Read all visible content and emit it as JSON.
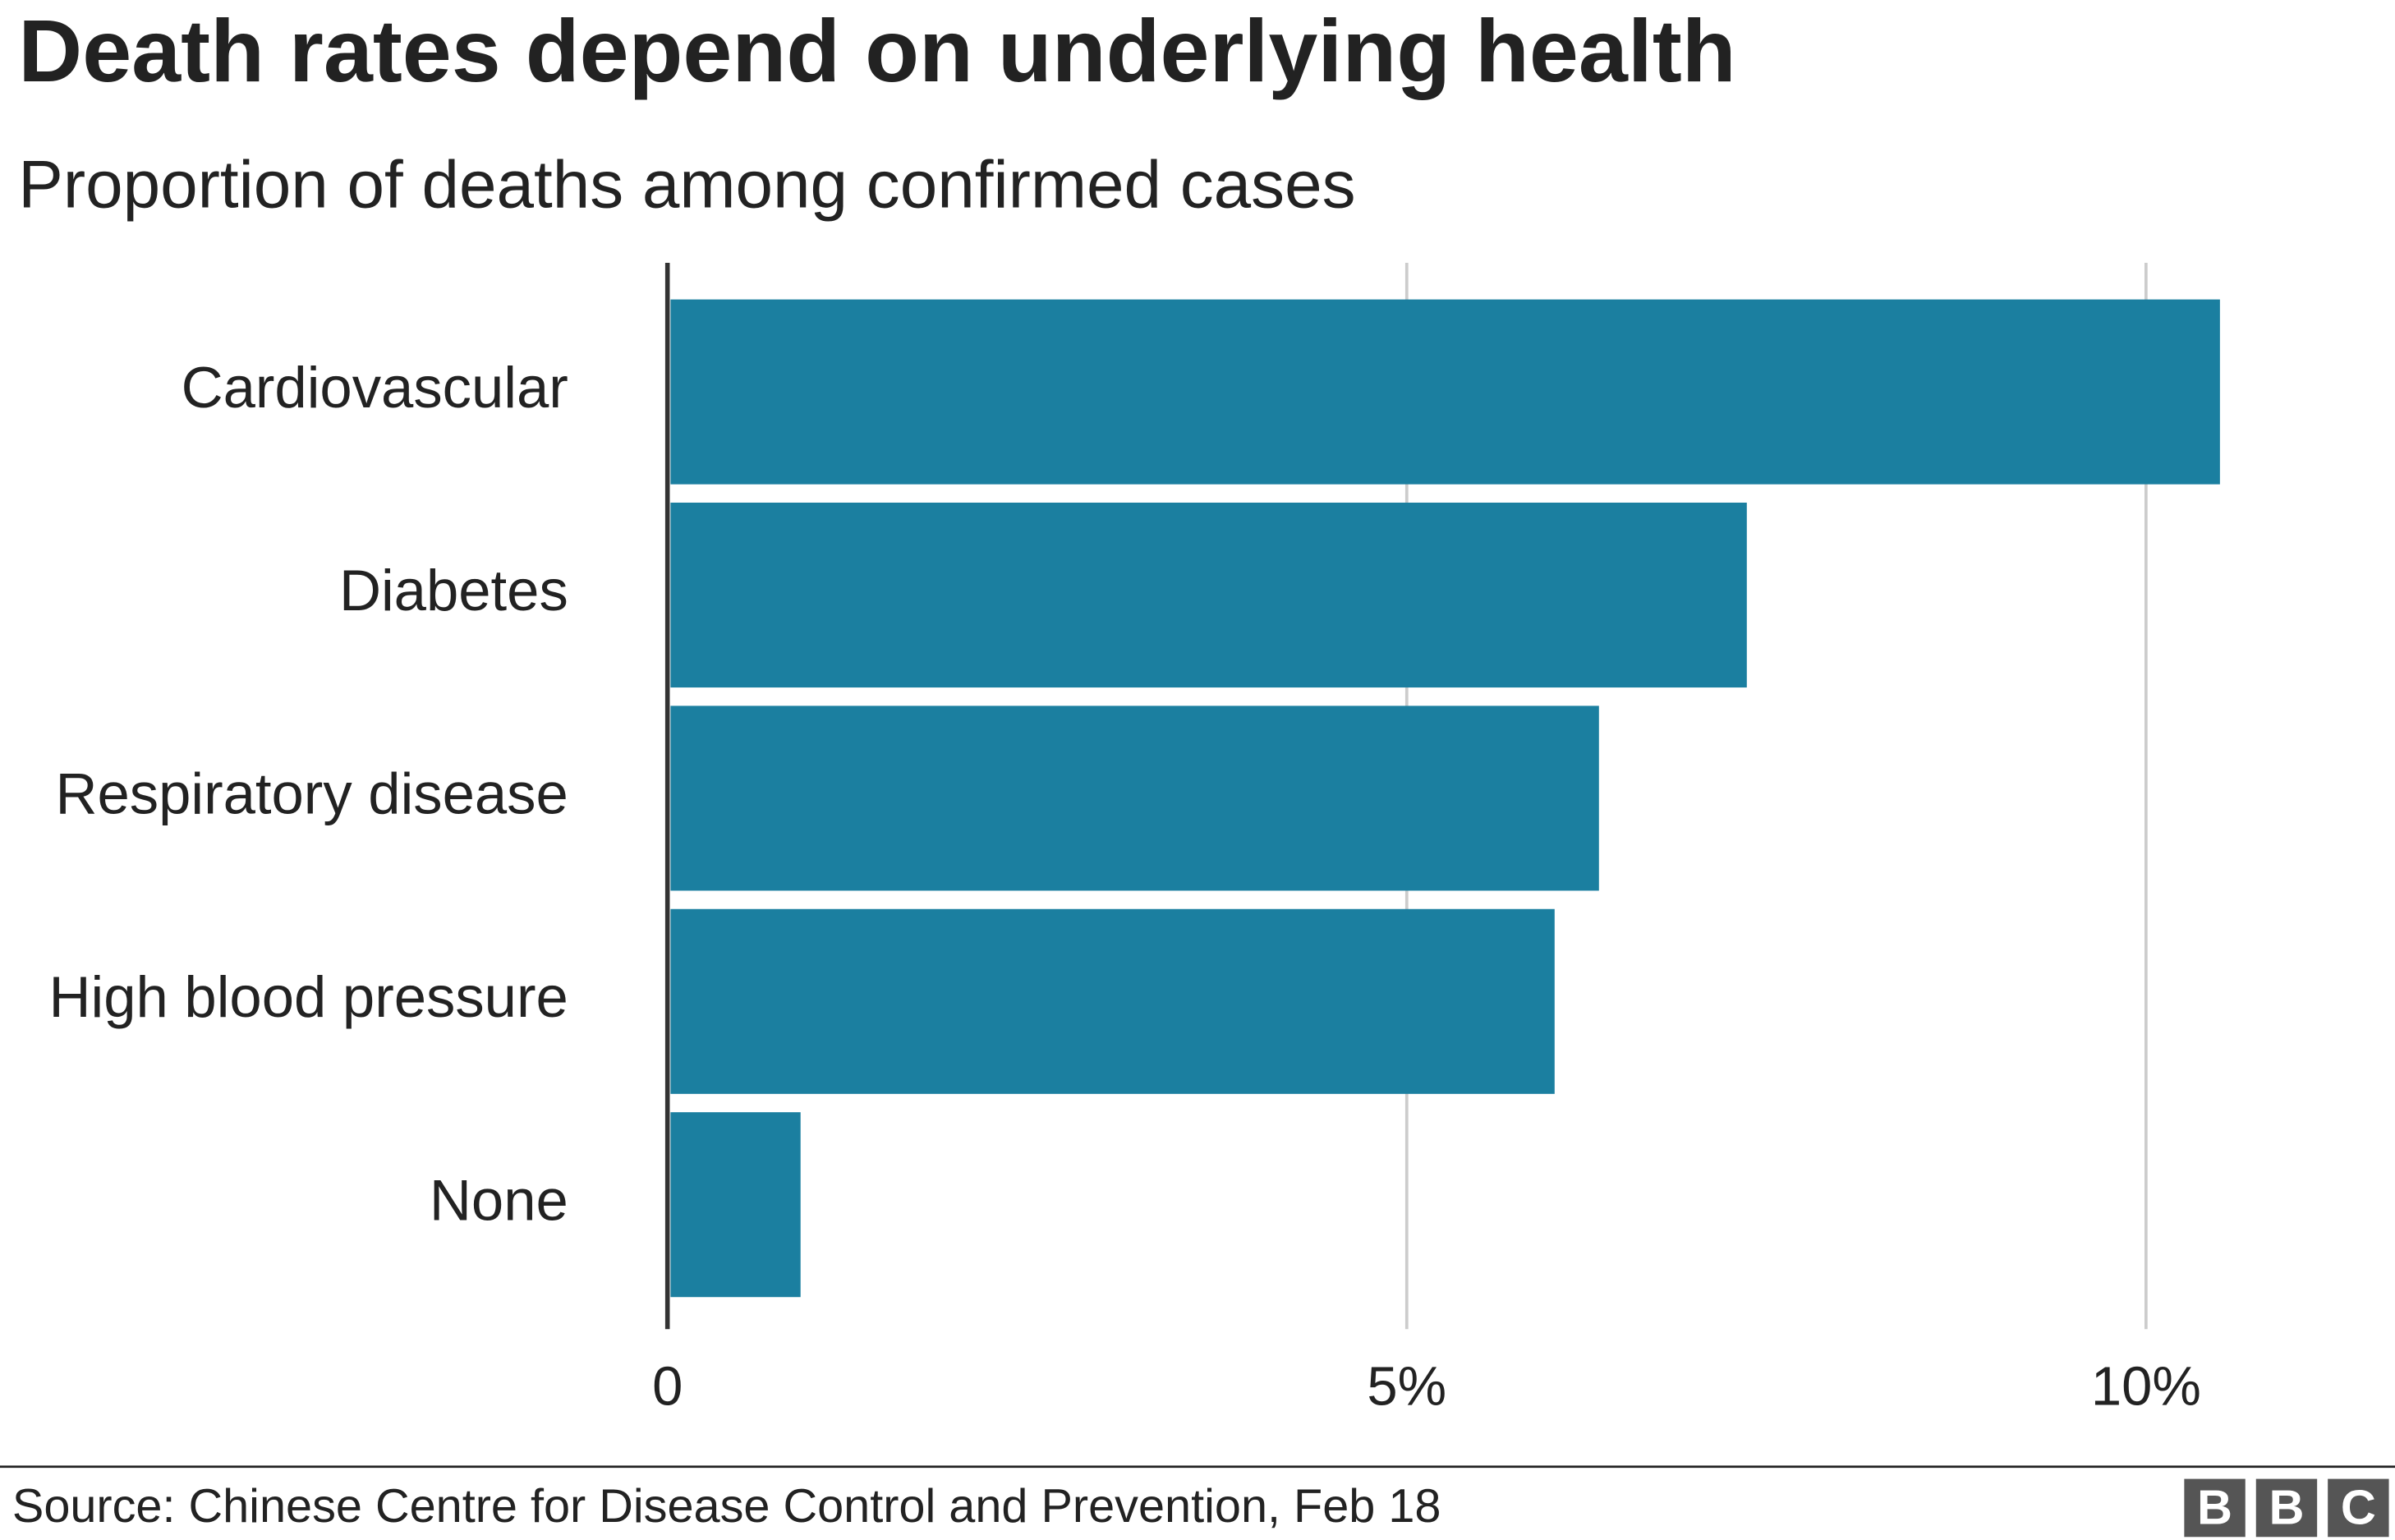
{
  "chart_data": {
    "type": "bar",
    "orientation": "horizontal",
    "title": "Death rates depend on underlying health",
    "subtitle": "Proportion of deaths among confirmed cases",
    "categories": [
      "Cardiovascular",
      "Diabetes",
      "Respiratory disease",
      "High blood pressure",
      "None"
    ],
    "values": [
      10.5,
      7.3,
      6.3,
      6.0,
      0.9
    ],
    "color": "#1b7fa0",
    "xlim": [
      0,
      11.6
    ],
    "xticks": [
      0,
      {
        "value": 5,
        "label": "5%"
      },
      {
        "value": 10,
        "label": "10%"
      }
    ],
    "grid": true,
    "source": "Source: Chinese Centre for Disease Control and Prevention, Feb 18",
    "logo": [
      "B",
      "B",
      "C"
    ]
  }
}
